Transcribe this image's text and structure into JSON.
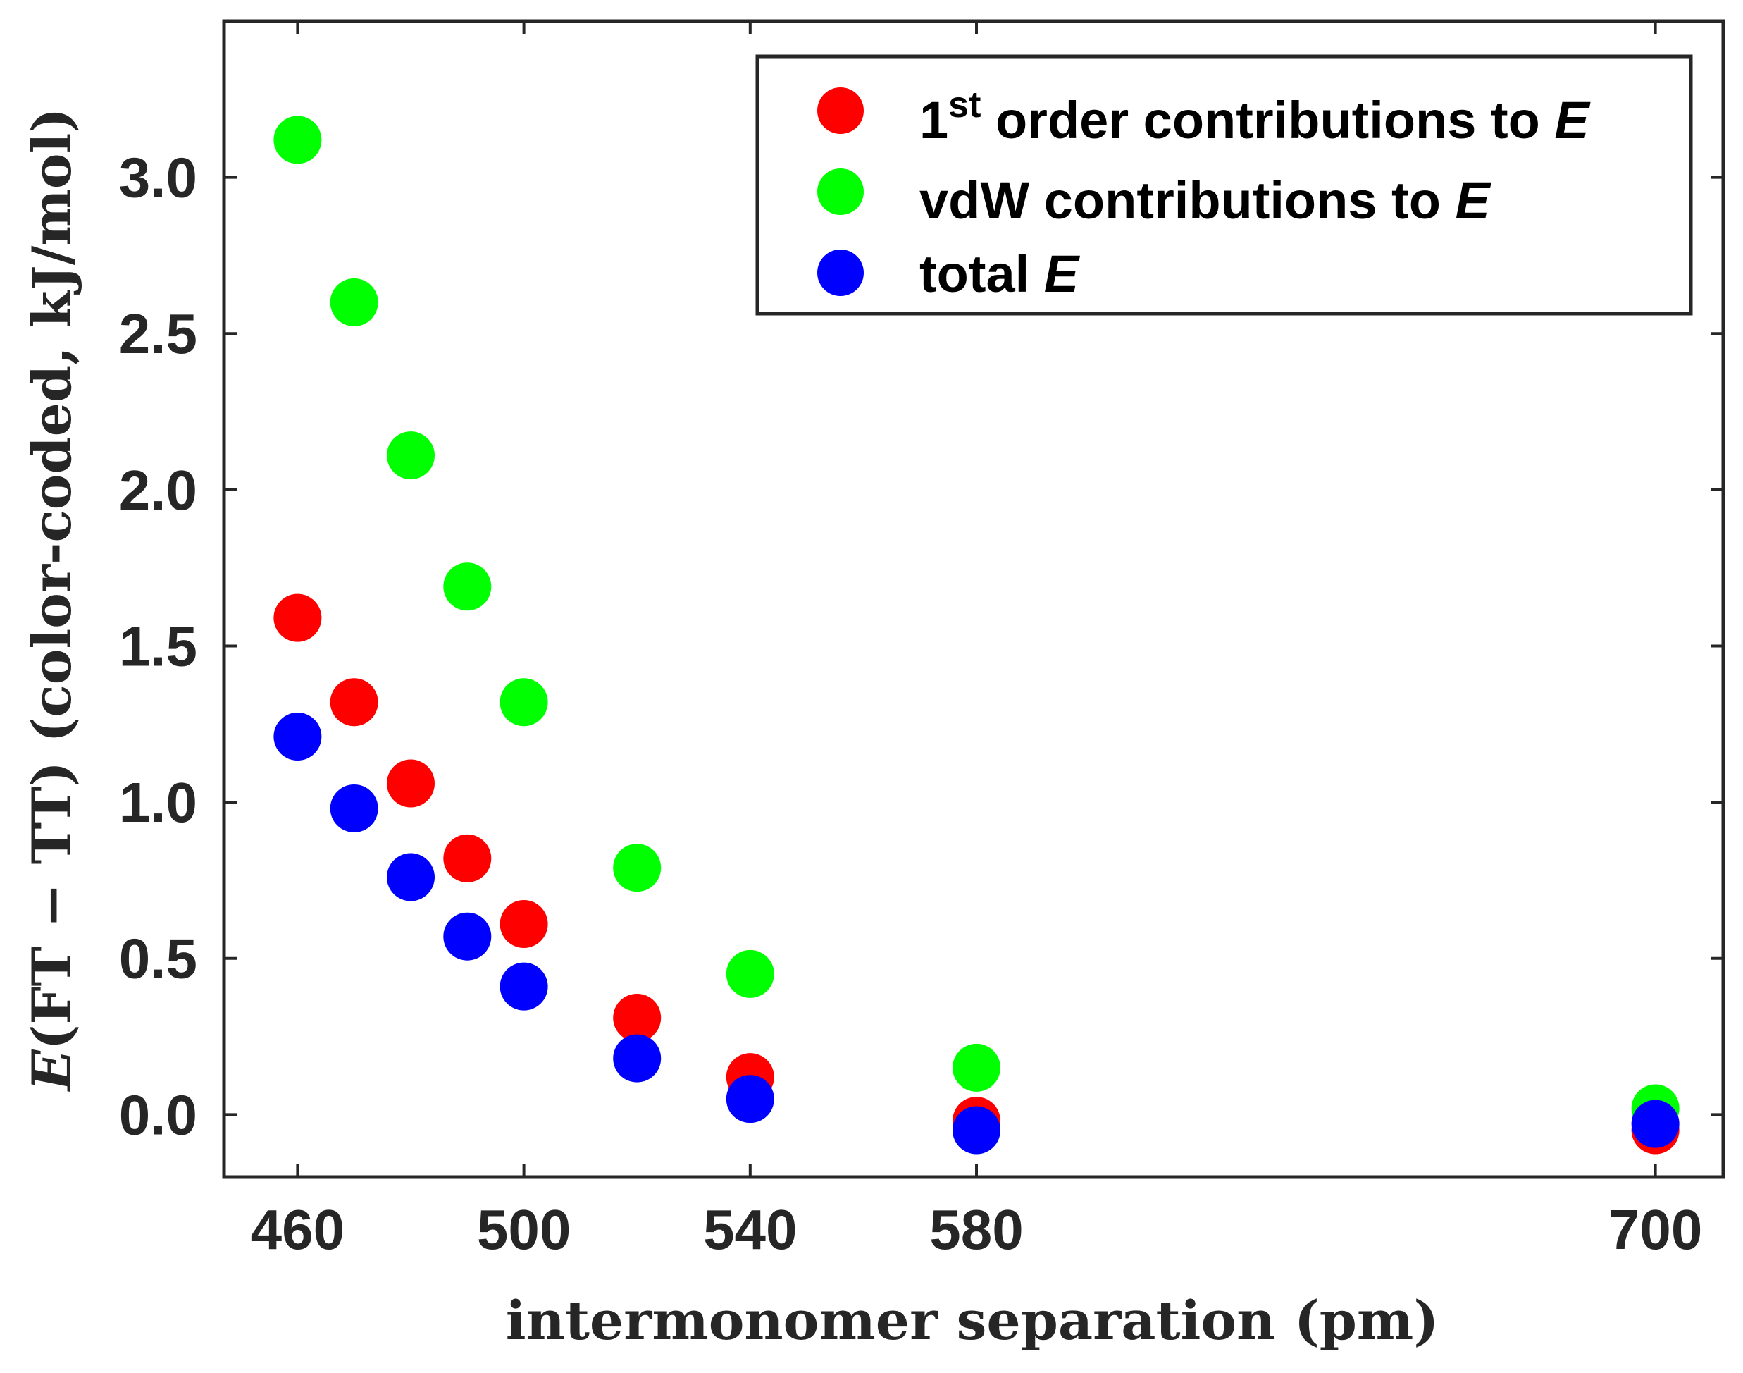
{
  "chart_data": {
    "type": "scatter",
    "title": "",
    "xlabel": "intermonomer separation (pm)",
    "ylabel_prefix": "E",
    "ylabel_rest": "(FT − TT) (color-coded, kJ/mol)",
    "xlim": [
      447,
      712
    ],
    "ylim": [
      -0.2,
      3.5
    ],
    "xticks": [
      460,
      500,
      540,
      580,
      700
    ],
    "xtick_labels": [
      "460",
      "500",
      "540",
      "580",
      "700"
    ],
    "yticks": [
      0.0,
      0.5,
      1.0,
      1.5,
      2.0,
      2.5,
      3.0
    ],
    "ytick_labels": [
      "0.0",
      "0.5",
      "1.0",
      "1.5",
      "2.0",
      "2.5",
      "3.0"
    ],
    "grid": false,
    "legend_position": "top-right",
    "x": [
      460,
      470,
      480,
      490,
      500,
      520,
      540,
      580,
      700
    ],
    "series": [
      {
        "name": "1st order contributions to E",
        "color": "#ff0000",
        "values": [
          1.59,
          1.32,
          1.06,
          0.82,
          0.61,
          0.31,
          0.12,
          -0.02,
          -0.05
        ]
      },
      {
        "name": "vdW contributions to E",
        "color": "#00ff00",
        "values": [
          3.12,
          2.6,
          2.11,
          1.69,
          1.32,
          0.79,
          0.45,
          0.15,
          0.02
        ]
      },
      {
        "name": "total E",
        "color": "#0000ff",
        "values": [
          1.21,
          0.98,
          0.76,
          0.57,
          0.41,
          0.18,
          0.05,
          -0.05,
          -0.03
        ]
      }
    ]
  },
  "legend": [
    {
      "prefix": "1",
      "sup": "st",
      "text": " order contributions to ",
      "italic": "E"
    },
    {
      "prefix": "",
      "sup": "",
      "text": "vdW contributions to ",
      "italic": "E"
    },
    {
      "prefix": "",
      "sup": "",
      "text": "total ",
      "italic": "E"
    }
  ]
}
